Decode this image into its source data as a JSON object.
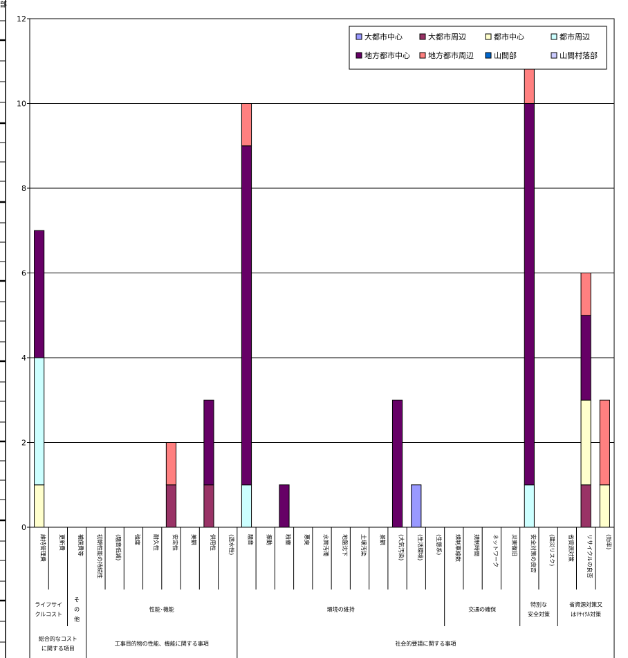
{
  "page": {
    "corner_label": "部"
  },
  "chart_data": {
    "type": "bar",
    "stacked": true,
    "ylim": [
      0,
      12
    ],
    "yticks": [
      "0",
      "2",
      "4",
      "6",
      "8",
      "10",
      "12"
    ],
    "grid": true,
    "legend_position": "top-right",
    "categories": [
      "維持管理費",
      "更新費",
      "補償費等",
      "初期性能の持続性",
      "(騒音低減)",
      "強度",
      "耐久性",
      "安定性",
      "美観",
      "供用性",
      "(透水性)",
      "騒音",
      "振動",
      "粉塵",
      "悪臭",
      "水質汚濁",
      "地盤沈下",
      "土壌汚染",
      "景観",
      "(大気汚染)",
      "(生活環境)",
      "(生態系)",
      "規制車線数",
      "規制時間",
      "ネットワーク",
      "災害復旧",
      "安全対策の良否",
      "(建災リスク)",
      "省資源対策",
      "リサイクルの良否",
      "(効率)"
    ],
    "series": [
      {
        "name": "大都市中心",
        "color": "#9999ff",
        "values": [
          0,
          0,
          0,
          0,
          0,
          0,
          0,
          0,
          0,
          0,
          0,
          0,
          0,
          0,
          0,
          0,
          0,
          0,
          0,
          0,
          1,
          0,
          0,
          0,
          0,
          0,
          0,
          0,
          0,
          0,
          0
        ]
      },
      {
        "name": "大都市周辺",
        "color": "#993366",
        "values": [
          0,
          0,
          0,
          0,
          0,
          0,
          0,
          1,
          0,
          1,
          0,
          0,
          0,
          0,
          0,
          0,
          0,
          0,
          0,
          0,
          0,
          0,
          0,
          0,
          0,
          0,
          0,
          0,
          0,
          1,
          0
        ]
      },
      {
        "name": "都市中心",
        "color": "#ffffcc",
        "values": [
          1,
          0,
          0,
          0,
          0,
          0,
          0,
          0,
          0,
          0,
          0,
          0,
          0,
          0,
          0,
          0,
          0,
          0,
          0,
          0,
          0,
          0,
          0,
          0,
          0,
          0,
          0,
          0,
          0,
          2,
          1
        ]
      },
      {
        "name": "都市周辺",
        "color": "#ccffff",
        "values": [
          3,
          0,
          0,
          0,
          0,
          0,
          0,
          0,
          0,
          0,
          0,
          1,
          0,
          0,
          0,
          0,
          0,
          0,
          0,
          0,
          0,
          0,
          0,
          0,
          0,
          0,
          1,
          0,
          0,
          0,
          0
        ]
      },
      {
        "name": "地方都市中心",
        "color": "#660066",
        "values": [
          3,
          0,
          0,
          0,
          0,
          0,
          0,
          0,
          0,
          2,
          0,
          8,
          0,
          1,
          0,
          0,
          0,
          0,
          0,
          3,
          0,
          0,
          0,
          0,
          0,
          0,
          9,
          0,
          0,
          2,
          0
        ]
      },
      {
        "name": "地方都市周辺",
        "color": "#ff8080",
        "values": [
          0,
          0,
          0,
          0,
          0,
          0,
          0,
          1,
          0,
          0,
          0,
          1,
          0,
          0,
          0,
          0,
          0,
          0,
          0,
          0,
          0,
          0,
          0,
          0,
          0,
          0,
          1,
          0,
          0,
          1,
          2
        ]
      },
      {
        "name": "山間部",
        "color": "#0066cc",
        "values": [
          0,
          0,
          0,
          0,
          0,
          0,
          0,
          0,
          0,
          0,
          0,
          0,
          0,
          0,
          0,
          0,
          0,
          0,
          0,
          0,
          0,
          0,
          0,
          0,
          0,
          0,
          0,
          0,
          0,
          0,
          0
        ]
      },
      {
        "name": "山間村落部",
        "color": "#ccccff",
        "values": [
          0,
          0,
          0,
          0,
          0,
          0,
          0,
          0,
          0,
          0,
          0,
          0,
          0,
          0,
          0,
          0,
          0,
          0,
          0,
          0,
          0,
          0,
          0,
          0,
          0,
          0,
          0,
          0,
          0,
          0,
          0
        ]
      }
    ],
    "group_labels_level1": [
      {
        "label": "ライフサイ\nクルコスト",
        "span": [
          0,
          1
        ]
      },
      {
        "label": "そ\nの\n他",
        "span": [
          2,
          2
        ]
      },
      {
        "label": "性能･機能",
        "span": [
          3,
          10
        ]
      },
      {
        "label": "環境の維持",
        "span": [
          11,
          21
        ]
      },
      {
        "label": "交通の確保",
        "span": [
          22,
          25
        ]
      },
      {
        "label": "特別な\n安全対策",
        "span": [
          26,
          27
        ]
      },
      {
        "label": "省資源対策又\nはﾘｻｲｸﾙ対策",
        "span": [
          28,
          30
        ]
      }
    ],
    "group_labels_level2": [
      {
        "label": "総合的なコスト\nに関する項目",
        "span": [
          0,
          2
        ]
      },
      {
        "label": "工事目的物の性能、機能に関する事項",
        "span": [
          3,
          10
        ]
      },
      {
        "label": "社会的要請に関する事項",
        "span": [
          11,
          30
        ]
      }
    ]
  }
}
